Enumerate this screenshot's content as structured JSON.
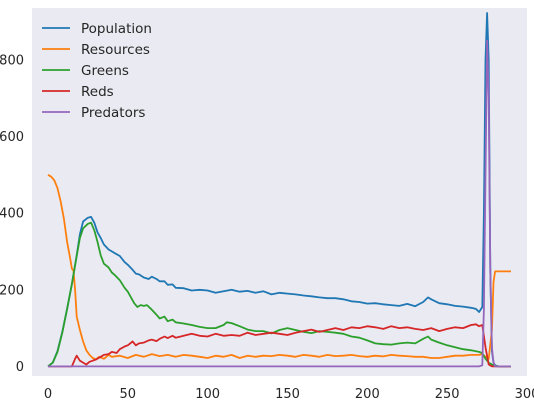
{
  "chart_data": {
    "type": "line",
    "title": "",
    "xlabel": "",
    "ylabel": "",
    "xlim": [
      -10,
      300
    ],
    "ylim": [
      -25,
      935
    ],
    "xticks": [
      0,
      50,
      100,
      150,
      200,
      250,
      300
    ],
    "yticks": [
      0,
      200,
      400,
      600,
      800
    ],
    "grid": false,
    "legend_position": "top-left",
    "background": "#eaeaf2",
    "series": [
      {
        "name": "Population",
        "color": "#1f77b4",
        "points": [
          [
            0,
            0
          ],
          [
            3,
            10
          ],
          [
            6,
            40
          ],
          [
            9,
            90
          ],
          [
            12,
            150
          ],
          [
            15,
            215
          ],
          [
            18,
            290
          ],
          [
            20,
            345
          ],
          [
            22,
            378
          ],
          [
            25,
            388
          ],
          [
            27,
            390
          ],
          [
            29,
            375
          ],
          [
            31,
            350
          ],
          [
            33,
            335
          ],
          [
            35,
            318
          ],
          [
            38,
            305
          ],
          [
            40,
            300
          ],
          [
            42,
            295
          ],
          [
            45,
            288
          ],
          [
            48,
            272
          ],
          [
            50,
            265
          ],
          [
            53,
            252
          ],
          [
            55,
            242
          ],
          [
            57,
            240
          ],
          [
            60,
            232
          ],
          [
            63,
            228
          ],
          [
            65,
            234
          ],
          [
            68,
            228
          ],
          [
            70,
            222
          ],
          [
            73,
            222
          ],
          [
            75,
            213
          ],
          [
            78,
            214
          ],
          [
            80,
            205
          ],
          [
            85,
            204
          ],
          [
            90,
            198
          ],
          [
            95,
            200
          ],
          [
            100,
            198
          ],
          [
            105,
            192
          ],
          [
            110,
            196
          ],
          [
            115,
            200
          ],
          [
            120,
            195
          ],
          [
            125,
            197
          ],
          [
            130,
            192
          ],
          [
            135,
            196
          ],
          [
            140,
            188
          ],
          [
            145,
            192
          ],
          [
            150,
            190
          ],
          [
            155,
            188
          ],
          [
            160,
            185
          ],
          [
            165,
            183
          ],
          [
            170,
            180
          ],
          [
            175,
            178
          ],
          [
            180,
            178
          ],
          [
            185,
            175
          ],
          [
            190,
            170
          ],
          [
            195,
            168
          ],
          [
            200,
            164
          ],
          [
            205,
            165
          ],
          [
            210,
            162
          ],
          [
            215,
            160
          ],
          [
            220,
            158
          ],
          [
            225,
            163
          ],
          [
            230,
            157
          ],
          [
            235,
            168
          ],
          [
            238,
            180
          ],
          [
            240,
            175
          ],
          [
            245,
            165
          ],
          [
            250,
            162
          ],
          [
            255,
            158
          ],
          [
            260,
            156
          ],
          [
            265,
            153
          ],
          [
            268,
            150
          ],
          [
            270,
            142
          ],
          [
            272,
            155
          ],
          [
            273,
            400
          ],
          [
            274,
            800
          ],
          [
            275,
            922
          ],
          [
            276,
            800
          ],
          [
            277,
            250
          ],
          [
            278,
            40
          ],
          [
            279,
            10
          ],
          [
            280,
            3
          ],
          [
            282,
            0
          ],
          [
            290,
            0
          ]
        ]
      },
      {
        "name": "Resources",
        "color": "#ff7f0e",
        "points": [
          [
            0,
            500
          ],
          [
            2,
            495
          ],
          [
            4,
            485
          ],
          [
            6,
            465
          ],
          [
            8,
            430
          ],
          [
            10,
            385
          ],
          [
            12,
            325
          ],
          [
            14,
            280
          ],
          [
            15,
            255
          ],
          [
            16,
            250
          ],
          [
            17,
            200
          ],
          [
            18,
            130
          ],
          [
            20,
            95
          ],
          [
            21,
            80
          ],
          [
            22,
            65
          ],
          [
            24,
            42
          ],
          [
            26,
            30
          ],
          [
            28,
            22
          ],
          [
            30,
            18
          ],
          [
            32,
            25
          ],
          [
            35,
            20
          ],
          [
            38,
            30
          ],
          [
            40,
            25
          ],
          [
            45,
            28
          ],
          [
            50,
            22
          ],
          [
            55,
            30
          ],
          [
            60,
            25
          ],
          [
            65,
            32
          ],
          [
            70,
            27
          ],
          [
            75,
            30
          ],
          [
            80,
            25
          ],
          [
            85,
            30
          ],
          [
            90,
            28
          ],
          [
            95,
            25
          ],
          [
            100,
            22
          ],
          [
            105,
            28
          ],
          [
            110,
            25
          ],
          [
            115,
            30
          ],
          [
            120,
            22
          ],
          [
            125,
            28
          ],
          [
            130,
            25
          ],
          [
            135,
            28
          ],
          [
            140,
            27
          ],
          [
            145,
            30
          ],
          [
            150,
            28
          ],
          [
            155,
            25
          ],
          [
            160,
            30
          ],
          [
            165,
            28
          ],
          [
            170,
            25
          ],
          [
            175,
            30
          ],
          [
            180,
            27
          ],
          [
            185,
            28
          ],
          [
            190,
            30
          ],
          [
            195,
            27
          ],
          [
            200,
            25
          ],
          [
            205,
            28
          ],
          [
            210,
            26
          ],
          [
            215,
            30
          ],
          [
            220,
            28
          ],
          [
            225,
            27
          ],
          [
            230,
            25
          ],
          [
            235,
            25
          ],
          [
            240,
            22
          ],
          [
            245,
            22
          ],
          [
            250,
            25
          ],
          [
            255,
            28
          ],
          [
            260,
            28
          ],
          [
            265,
            30
          ],
          [
            270,
            30
          ],
          [
            272,
            32
          ],
          [
            274,
            25
          ],
          [
            276,
            20
          ],
          [
            278,
            95
          ],
          [
            279,
            220
          ],
          [
            280,
            248
          ],
          [
            285,
            248
          ],
          [
            290,
            248
          ]
        ]
      },
      {
        "name": "Greens",
        "color": "#2ca02c",
        "points": [
          [
            0,
            0
          ],
          [
            3,
            10
          ],
          [
            6,
            38
          ],
          [
            9,
            88
          ],
          [
            12,
            150
          ],
          [
            15,
            215
          ],
          [
            18,
            288
          ],
          [
            20,
            335
          ],
          [
            22,
            360
          ],
          [
            25,
            372
          ],
          [
            27,
            375
          ],
          [
            29,
            355
          ],
          [
            31,
            325
          ],
          [
            33,
            290
          ],
          [
            35,
            268
          ],
          [
            38,
            258
          ],
          [
            40,
            245
          ],
          [
            42,
            238
          ],
          [
            45,
            225
          ],
          [
            48,
            205
          ],
          [
            50,
            195
          ],
          [
            52,
            180
          ],
          [
            54,
            165
          ],
          [
            56,
            155
          ],
          [
            58,
            160
          ],
          [
            60,
            158
          ],
          [
            62,
            160
          ],
          [
            65,
            148
          ],
          [
            68,
            135
          ],
          [
            70,
            125
          ],
          [
            73,
            130
          ],
          [
            75,
            118
          ],
          [
            78,
            122
          ],
          [
            80,
            115
          ],
          [
            85,
            112
          ],
          [
            90,
            108
          ],
          [
            95,
            103
          ],
          [
            100,
            100
          ],
          [
            105,
            100
          ],
          [
            110,
            108
          ],
          [
            112,
            115
          ],
          [
            115,
            113
          ],
          [
            120,
            105
          ],
          [
            125,
            96
          ],
          [
            130,
            92
          ],
          [
            135,
            92
          ],
          [
            140,
            86
          ],
          [
            145,
            95
          ],
          [
            150,
            100
          ],
          [
            155,
            95
          ],
          [
            160,
            90
          ],
          [
            165,
            87
          ],
          [
            170,
            92
          ],
          [
            175,
            90
          ],
          [
            180,
            88
          ],
          [
            185,
            85
          ],
          [
            190,
            78
          ],
          [
            195,
            75
          ],
          [
            200,
            68
          ],
          [
            205,
            60
          ],
          [
            210,
            58
          ],
          [
            215,
            57
          ],
          [
            220,
            60
          ],
          [
            225,
            62
          ],
          [
            230,
            60
          ],
          [
            235,
            72
          ],
          [
            238,
            78
          ],
          [
            240,
            70
          ],
          [
            245,
            62
          ],
          [
            250,
            55
          ],
          [
            255,
            50
          ],
          [
            260,
            45
          ],
          [
            265,
            42
          ],
          [
            270,
            38
          ],
          [
            272,
            35
          ],
          [
            274,
            20
          ],
          [
            276,
            10
          ],
          [
            278,
            5
          ],
          [
            280,
            2
          ],
          [
            282,
            0
          ],
          [
            290,
            0
          ]
        ]
      },
      {
        "name": "Reds",
        "color": "#d62728",
        "points": [
          [
            0,
            0
          ],
          [
            15,
            0
          ],
          [
            17,
            20
          ],
          [
            18,
            28
          ],
          [
            20,
            15
          ],
          [
            22,
            10
          ],
          [
            24,
            5
          ],
          [
            26,
            12
          ],
          [
            28,
            15
          ],
          [
            30,
            18
          ],
          [
            33,
            25
          ],
          [
            35,
            30
          ],
          [
            38,
            32
          ],
          [
            40,
            38
          ],
          [
            43,
            35
          ],
          [
            45,
            45
          ],
          [
            48,
            52
          ],
          [
            50,
            55
          ],
          [
            53,
            65
          ],
          [
            55,
            55
          ],
          [
            57,
            60
          ],
          [
            60,
            62
          ],
          [
            63,
            68
          ],
          [
            65,
            70
          ],
          [
            68,
            66
          ],
          [
            70,
            72
          ],
          [
            73,
            78
          ],
          [
            75,
            74
          ],
          [
            78,
            80
          ],
          [
            80,
            75
          ],
          [
            85,
            80
          ],
          [
            90,
            85
          ],
          [
            95,
            80
          ],
          [
            100,
            78
          ],
          [
            105,
            85
          ],
          [
            110,
            80
          ],
          [
            115,
            82
          ],
          [
            120,
            80
          ],
          [
            125,
            88
          ],
          [
            130,
            82
          ],
          [
            135,
            85
          ],
          [
            140,
            88
          ],
          [
            145,
            85
          ],
          [
            150,
            82
          ],
          [
            155,
            88
          ],
          [
            160,
            92
          ],
          [
            165,
            96
          ],
          [
            170,
            90
          ],
          [
            175,
            95
          ],
          [
            180,
            100
          ],
          [
            185,
            95
          ],
          [
            190,
            102
          ],
          [
            195,
            100
          ],
          [
            200,
            105
          ],
          [
            205,
            102
          ],
          [
            210,
            98
          ],
          [
            215,
            105
          ],
          [
            220,
            100
          ],
          [
            225,
            102
          ],
          [
            230,
            98
          ],
          [
            235,
            95
          ],
          [
            240,
            100
          ],
          [
            245,
            92
          ],
          [
            250,
            98
          ],
          [
            255,
            102
          ],
          [
            260,
            100
          ],
          [
            265,
            108
          ],
          [
            268,
            110
          ],
          [
            270,
            105
          ],
          [
            272,
            108
          ],
          [
            274,
            50
          ],
          [
            276,
            5
          ],
          [
            278,
            0
          ],
          [
            290,
            0
          ]
        ]
      },
      {
        "name": "Predators",
        "color": "#9467bd",
        "points": [
          [
            0,
            0
          ],
          [
            270,
            0
          ],
          [
            272,
            3
          ],
          [
            273,
            150
          ],
          [
            274,
            500
          ],
          [
            275,
            850
          ],
          [
            276,
            700
          ],
          [
            277,
            250
          ],
          [
            278,
            50
          ],
          [
            279,
            10
          ],
          [
            280,
            0
          ],
          [
            290,
            0
          ]
        ]
      }
    ]
  }
}
